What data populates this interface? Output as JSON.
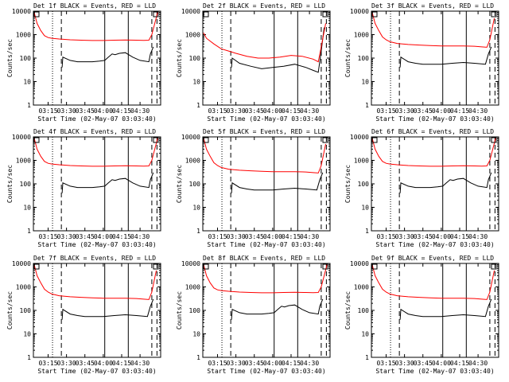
{
  "xlabel": "Start Time (02-May-07 03:03:40)",
  "ylabel": "Counts/sec",
  "ytick_labels": [
    "1",
    "10",
    "100",
    "1000",
    "10000"
  ],
  "xtick_labels": [
    "03:15",
    "03:30",
    "03:45",
    "04:00",
    "04:15",
    "04:30"
  ],
  "colors": {
    "events": "#000000",
    "lld": "#ff0000"
  },
  "chart_data": [
    {
      "type": "line",
      "title": "Det 1f BLACK = Events, RED = LLD",
      "yscale": "log",
      "ylim": [
        1,
        10000
      ],
      "markers": [
        {
          "t": 3.31,
          "style": "dotted"
        },
        {
          "t": 3.43,
          "style": "dashed"
        },
        {
          "t": 4.02,
          "style": "solid"
        },
        {
          "t": 4.34,
          "style": "solid"
        },
        {
          "t": 4.66,
          "style": "dashed"
        },
        {
          "t": 4.73,
          "style": "dashed"
        }
      ],
      "series": [
        {
          "name": "Events",
          "color": "#000000",
          "x": [
            3.44,
            3.45,
            3.55,
            3.65,
            3.75,
            3.85,
            3.95,
            4.02,
            4.07,
            4.12,
            4.16,
            4.22,
            4.3,
            4.4,
            4.5,
            4.62,
            4.64,
            4.68
          ],
          "y": [
            40,
            110,
            80,
            70,
            70,
            70,
            75,
            80,
            110,
            150,
            140,
            160,
            170,
            110,
            80,
            70,
            150,
            300
          ]
        },
        {
          "name": "LLD",
          "color": "#ff0000",
          "x": [
            3.06,
            3.1,
            3.15,
            3.2,
            3.25,
            3.3,
            3.4,
            3.55,
            3.7,
            3.85,
            4.0,
            4.15,
            4.3,
            4.45,
            4.55,
            4.62,
            4.66,
            4.7,
            4.74
          ],
          "y": [
            9000,
            3000,
            1500,
            900,
            750,
            700,
            650,
            600,
            580,
            560,
            560,
            580,
            590,
            580,
            570,
            580,
            1000,
            3000,
            9000
          ]
        }
      ]
    },
    {
      "type": "line",
      "title": "Det 2f BLACK = Events, RED = LLD",
      "yscale": "log",
      "ylim": [
        1,
        10000
      ],
      "markers": [
        {
          "t": 3.31,
          "style": "dotted"
        },
        {
          "t": 3.43,
          "style": "dashed"
        },
        {
          "t": 4.02,
          "style": "solid"
        },
        {
          "t": 4.34,
          "style": "solid"
        },
        {
          "t": 4.66,
          "style": "dashed"
        },
        {
          "t": 4.73,
          "style": "dashed"
        }
      ],
      "series": [
        {
          "name": "Events",
          "color": "#000000",
          "x": [
            3.44,
            3.45,
            3.55,
            3.7,
            3.85,
            4.0,
            4.15,
            4.3,
            4.45,
            4.55,
            4.62,
            4.66,
            4.7
          ],
          "y": [
            40,
            100,
            60,
            45,
            35,
            40,
            45,
            55,
            40,
            30,
            25,
            200,
            2000
          ]
        },
        {
          "name": "LLD",
          "color": "#ff0000",
          "x": [
            3.06,
            3.1,
            3.2,
            3.3,
            3.4,
            3.5,
            3.65,
            3.8,
            3.95,
            4.1,
            4.25,
            4.4,
            4.55,
            4.62,
            4.66,
            4.72
          ],
          "y": [
            1200,
            700,
            400,
            250,
            200,
            160,
            120,
            100,
            100,
            110,
            130,
            120,
            90,
            70,
            300,
            3000
          ]
        }
      ]
    },
    {
      "type": "line",
      "title": "Det 3f BLACK = Events, RED = LLD",
      "yscale": "log",
      "ylim": [
        1,
        10000
      ],
      "markers": [
        {
          "t": 3.31,
          "style": "dotted"
        },
        {
          "t": 3.43,
          "style": "dashed"
        },
        {
          "t": 4.02,
          "style": "solid"
        },
        {
          "t": 4.34,
          "style": "solid"
        },
        {
          "t": 4.66,
          "style": "dashed"
        },
        {
          "t": 4.73,
          "style": "dashed"
        }
      ],
      "series": [
        {
          "name": "Events",
          "color": "#000000",
          "x": [
            3.44,
            3.45,
            3.55,
            3.65,
            3.75,
            3.85,
            4.0,
            4.15,
            4.3,
            4.45,
            4.6,
            4.64,
            4.68
          ],
          "y": [
            40,
            110,
            70,
            60,
            55,
            55,
            55,
            60,
            65,
            60,
            55,
            150,
            300
          ]
        },
        {
          "name": "LLD",
          "color": "#ff0000",
          "x": [
            3.06,
            3.1,
            3.15,
            3.2,
            3.25,
            3.3,
            3.4,
            3.55,
            3.7,
            3.85,
            4.0,
            4.15,
            4.3,
            4.45,
            4.55,
            4.62,
            4.66,
            4.72
          ],
          "y": [
            9000,
            3000,
            1500,
            800,
            600,
            500,
            420,
            380,
            360,
            340,
            330,
            330,
            330,
            320,
            300,
            290,
            600,
            5000
          ]
        }
      ]
    },
    {
      "type": "line",
      "title": "Det 4f BLACK = Events, RED = LLD",
      "yscale": "log",
      "ylim": [
        1,
        10000
      ],
      "markers": [
        {
          "t": 3.31,
          "style": "dotted"
        },
        {
          "t": 3.43,
          "style": "dashed"
        },
        {
          "t": 4.02,
          "style": "solid"
        },
        {
          "t": 4.34,
          "style": "solid"
        },
        {
          "t": 4.66,
          "style": "dashed"
        },
        {
          "t": 4.73,
          "style": "dashed"
        }
      ],
      "series": [
        {
          "name": "Events",
          "color": "#000000",
          "x": [
            3.44,
            3.45,
            3.55,
            3.65,
            3.75,
            3.85,
            3.95,
            4.02,
            4.07,
            4.12,
            4.16,
            4.22,
            4.3,
            4.4,
            4.5,
            4.62,
            4.64,
            4.68
          ],
          "y": [
            40,
            110,
            80,
            70,
            70,
            70,
            75,
            80,
            110,
            150,
            140,
            160,
            170,
            110,
            80,
            70,
            150,
            300
          ]
        },
        {
          "name": "LLD",
          "color": "#ff0000",
          "x": [
            3.06,
            3.1,
            3.15,
            3.2,
            3.25,
            3.3,
            3.4,
            3.55,
            3.7,
            3.85,
            4.0,
            4.15,
            4.3,
            4.45,
            4.55,
            4.62,
            4.66,
            4.7,
            4.74
          ],
          "y": [
            9000,
            3000,
            1500,
            900,
            750,
            700,
            650,
            600,
            580,
            560,
            560,
            580,
            590,
            580,
            570,
            580,
            1000,
            3000,
            9000
          ]
        }
      ]
    },
    {
      "type": "line",
      "title": "Det 5f BLACK = Events, RED = LLD",
      "yscale": "log",
      "ylim": [
        1,
        10000
      ],
      "markers": [
        {
          "t": 3.31,
          "style": "dotted"
        },
        {
          "t": 3.43,
          "style": "dashed"
        },
        {
          "t": 4.02,
          "style": "solid"
        },
        {
          "t": 4.34,
          "style": "solid"
        },
        {
          "t": 4.66,
          "style": "dashed"
        },
        {
          "t": 4.73,
          "style": "dashed"
        }
      ],
      "series": [
        {
          "name": "Events",
          "color": "#000000",
          "x": [
            3.44,
            3.45,
            3.55,
            3.65,
            3.75,
            3.85,
            4.0,
            4.15,
            4.3,
            4.45,
            4.6,
            4.64,
            4.68
          ],
          "y": [
            40,
            110,
            70,
            60,
            55,
            55,
            55,
            60,
            65,
            60,
            55,
            150,
            300
          ]
        },
        {
          "name": "LLD",
          "color": "#ff0000",
          "x": [
            3.06,
            3.1,
            3.15,
            3.2,
            3.25,
            3.3,
            3.4,
            3.55,
            3.7,
            3.85,
            4.0,
            4.15,
            4.3,
            4.45,
            4.55,
            4.62,
            4.66,
            4.72
          ],
          "y": [
            9000,
            3000,
            1500,
            800,
            600,
            500,
            420,
            380,
            360,
            340,
            330,
            330,
            330,
            320,
            300,
            290,
            600,
            5000
          ]
        }
      ]
    },
    {
      "type": "line",
      "title": "Det 6f BLACK = Events, RED = LLD",
      "yscale": "log",
      "ylim": [
        1,
        10000
      ],
      "markers": [
        {
          "t": 3.31,
          "style": "dotted"
        },
        {
          "t": 3.43,
          "style": "dashed"
        },
        {
          "t": 4.02,
          "style": "solid"
        },
        {
          "t": 4.34,
          "style": "solid"
        },
        {
          "t": 4.66,
          "style": "dashed"
        },
        {
          "t": 4.73,
          "style": "dashed"
        }
      ],
      "series": [
        {
          "name": "Events",
          "color": "#000000",
          "x": [
            3.44,
            3.45,
            3.55,
            3.65,
            3.75,
            3.85,
            3.95,
            4.02,
            4.07,
            4.12,
            4.16,
            4.22,
            4.3,
            4.4,
            4.5,
            4.62,
            4.64,
            4.68
          ],
          "y": [
            40,
            110,
            80,
            70,
            70,
            70,
            75,
            80,
            110,
            150,
            140,
            160,
            170,
            110,
            80,
            70,
            150,
            300
          ]
        },
        {
          "name": "LLD",
          "color": "#ff0000",
          "x": [
            3.06,
            3.1,
            3.15,
            3.2,
            3.25,
            3.3,
            3.4,
            3.55,
            3.7,
            3.85,
            4.0,
            4.15,
            4.3,
            4.45,
            4.55,
            4.62,
            4.66,
            4.7,
            4.74
          ],
          "y": [
            9000,
            3000,
            1500,
            900,
            750,
            700,
            650,
            600,
            580,
            560,
            560,
            580,
            590,
            580,
            570,
            580,
            1000,
            3000,
            9000
          ]
        }
      ]
    },
    {
      "type": "line",
      "title": "Det 7f BLACK = Events, RED = LLD",
      "yscale": "log",
      "ylim": [
        1,
        10000
      ],
      "markers": [
        {
          "t": 3.31,
          "style": "dotted"
        },
        {
          "t": 3.43,
          "style": "dashed"
        },
        {
          "t": 4.02,
          "style": "solid"
        },
        {
          "t": 4.34,
          "style": "solid"
        },
        {
          "t": 4.66,
          "style": "dashed"
        },
        {
          "t": 4.73,
          "style": "dashed"
        }
      ],
      "series": [
        {
          "name": "Events",
          "color": "#000000",
          "x": [
            3.44,
            3.45,
            3.55,
            3.65,
            3.75,
            3.85,
            4.0,
            4.15,
            4.3,
            4.45,
            4.6,
            4.64,
            4.68
          ],
          "y": [
            40,
            110,
            70,
            60,
            55,
            55,
            55,
            60,
            65,
            60,
            55,
            150,
            300
          ]
        },
        {
          "name": "LLD",
          "color": "#ff0000",
          "x": [
            3.06,
            3.1,
            3.15,
            3.2,
            3.25,
            3.3,
            3.4,
            3.55,
            3.7,
            3.85,
            4.0,
            4.15,
            4.3,
            4.45,
            4.55,
            4.62,
            4.66,
            4.72
          ],
          "y": [
            9000,
            3000,
            1500,
            800,
            600,
            500,
            420,
            380,
            360,
            340,
            330,
            330,
            330,
            320,
            300,
            290,
            600,
            5000
          ]
        }
      ]
    },
    {
      "type": "line",
      "title": "Det 8f BLACK = Events, RED = LLD",
      "yscale": "log",
      "ylim": [
        1,
        10000
      ],
      "markers": [
        {
          "t": 3.31,
          "style": "dotted"
        },
        {
          "t": 3.43,
          "style": "dashed"
        },
        {
          "t": 4.02,
          "style": "solid"
        },
        {
          "t": 4.34,
          "style": "solid"
        },
        {
          "t": 4.66,
          "style": "dashed"
        },
        {
          "t": 4.73,
          "style": "dashed"
        }
      ],
      "series": [
        {
          "name": "Events",
          "color": "#000000",
          "x": [
            3.44,
            3.45,
            3.55,
            3.65,
            3.75,
            3.85,
            3.95,
            4.02,
            4.07,
            4.12,
            4.16,
            4.22,
            4.3,
            4.4,
            4.5,
            4.62,
            4.64,
            4.68
          ],
          "y": [
            40,
            110,
            80,
            70,
            70,
            70,
            75,
            80,
            110,
            150,
            140,
            160,
            170,
            110,
            80,
            70,
            150,
            300
          ]
        },
        {
          "name": "LLD",
          "color": "#ff0000",
          "x": [
            3.06,
            3.1,
            3.15,
            3.2,
            3.25,
            3.3,
            3.4,
            3.55,
            3.7,
            3.85,
            4.0,
            4.15,
            4.3,
            4.45,
            4.55,
            4.62,
            4.66,
            4.7,
            4.74
          ],
          "y": [
            9000,
            3000,
            1500,
            900,
            750,
            700,
            650,
            600,
            580,
            560,
            560,
            580,
            590,
            580,
            570,
            580,
            1000,
            3000,
            9000
          ]
        }
      ]
    },
    {
      "type": "line",
      "title": "Det 9f BLACK = Events, RED = LLD",
      "yscale": "log",
      "ylim": [
        1,
        10000
      ],
      "markers": [
        {
          "t": 3.31,
          "style": "dotted"
        },
        {
          "t": 3.43,
          "style": "dashed"
        },
        {
          "t": 4.02,
          "style": "solid"
        },
        {
          "t": 4.34,
          "style": "solid"
        },
        {
          "t": 4.66,
          "style": "dashed"
        },
        {
          "t": 4.73,
          "style": "dashed"
        }
      ],
      "series": [
        {
          "name": "Events",
          "color": "#000000",
          "x": [
            3.44,
            3.45,
            3.55,
            3.65,
            3.75,
            3.85,
            4.0,
            4.15,
            4.3,
            4.45,
            4.6,
            4.64,
            4.68
          ],
          "y": [
            40,
            110,
            70,
            60,
            55,
            55,
            55,
            60,
            65,
            60,
            55,
            150,
            300
          ]
        },
        {
          "name": "LLD",
          "color": "#ff0000",
          "x": [
            3.06,
            3.1,
            3.15,
            3.2,
            3.25,
            3.3,
            3.4,
            3.55,
            3.7,
            3.85,
            4.0,
            4.15,
            4.3,
            4.45,
            4.55,
            4.62,
            4.66,
            4.72
          ],
          "y": [
            9000,
            3000,
            1500,
            800,
            600,
            500,
            420,
            380,
            360,
            340,
            330,
            330,
            330,
            320,
            300,
            290,
            600,
            5000
          ]
        }
      ]
    }
  ]
}
